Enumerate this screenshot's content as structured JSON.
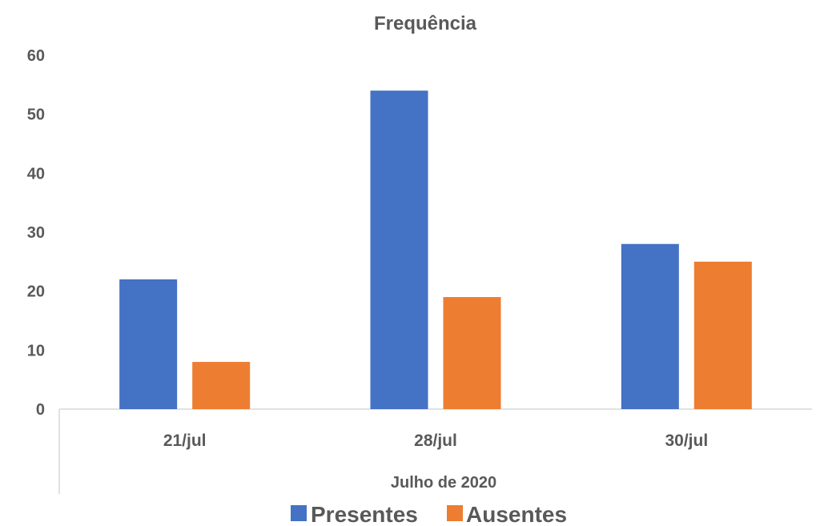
{
  "chart_data": {
    "type": "bar",
    "title": "Frequência",
    "xlabel": "Julho de 2020",
    "ylabel": "",
    "categories": [
      "21/jul",
      "28/jul",
      "30/jul"
    ],
    "series": [
      {
        "name": "Presentes",
        "values": [
          22,
          54,
          28
        ],
        "color": "#4472C4"
      },
      {
        "name": "Ausentes",
        "values": [
          8,
          19,
          25
        ],
        "color": "#ED7D31"
      }
    ],
    "ylim": [
      0,
      60
    ],
    "yticks": [
      0,
      10,
      20,
      30,
      40,
      50,
      60
    ],
    "grid": false,
    "legend": "bottom"
  }
}
